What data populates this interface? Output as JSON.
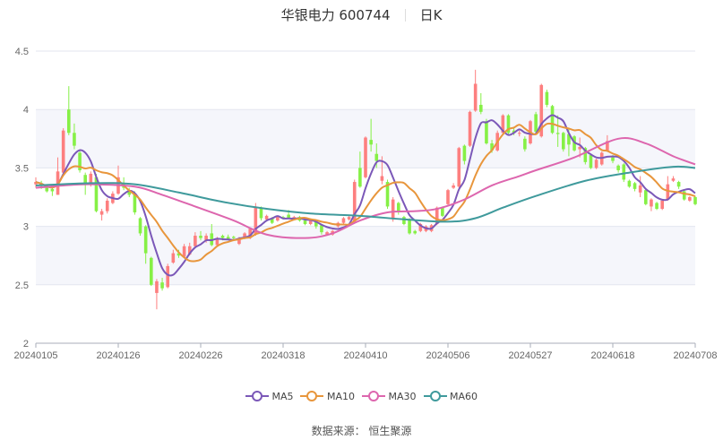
{
  "header": {
    "stock_name_code": "华银电力 600744",
    "period": "日K"
  },
  "source_text": "数据来源： 恒生聚源",
  "colors": {
    "up": "#fd7f7f",
    "down": "#86f046",
    "MA5": "#7b58b8",
    "MA10": "#e8963c",
    "MA30": "#dd66ae",
    "MA60": "#3f9a9c",
    "band": "#f5f6fb",
    "grid": "#e3e6ef"
  },
  "chart_data": {
    "type": "candlestick",
    "ylim": [
      2,
      4.5
    ],
    "y_ticks": [
      "2",
      "2.5",
      "3",
      "3.5",
      "4",
      "4.5"
    ],
    "x_tick_labels": [
      {
        "index": 0,
        "label": "20240105"
      },
      {
        "index": 15,
        "label": "20240126"
      },
      {
        "index": 30,
        "label": "20240226"
      },
      {
        "index": 45,
        "label": "20240318"
      },
      {
        "index": 60,
        "label": "20240410"
      },
      {
        "index": 75,
        "label": "20240506"
      },
      {
        "index": 90,
        "label": "20240527"
      },
      {
        "index": 105,
        "label": "20240618"
      },
      {
        "index": 120,
        "label": "20240708"
      }
    ],
    "candle_format": [
      "open",
      "close",
      "low",
      "high"
    ],
    "candles": [
      [
        3.36,
        3.38,
        3.33,
        3.42
      ],
      [
        3.37,
        3.35,
        3.32,
        3.39
      ],
      [
        3.33,
        3.3,
        3.29,
        3.35
      ],
      [
        3.32,
        3.3,
        3.26,
        3.34
      ],
      [
        3.27,
        3.47,
        3.27,
        3.59
      ],
      [
        3.46,
        3.82,
        3.45,
        3.84
      ],
      [
        4.0,
        3.8,
        3.78,
        4.2
      ],
      [
        3.8,
        3.69,
        3.66,
        3.88
      ],
      [
        3.63,
        3.48,
        3.46,
        3.66
      ],
      [
        3.44,
        3.36,
        3.27,
        3.46
      ],
      [
        3.37,
        3.45,
        3.34,
        3.47
      ],
      [
        3.42,
        3.13,
        3.12,
        3.45
      ],
      [
        3.1,
        3.13,
        3.05,
        3.15
      ],
      [
        3.13,
        3.22,
        3.11,
        3.24
      ],
      [
        3.2,
        3.28,
        3.19,
        3.3
      ],
      [
        3.28,
        3.42,
        3.27,
        3.52
      ],
      [
        3.36,
        3.33,
        3.31,
        3.42
      ],
      [
        3.31,
        3.27,
        3.25,
        3.33
      ],
      [
        3.28,
        3.12,
        3.1,
        3.3
      ],
      [
        3.07,
        2.94,
        2.92,
        3.08
      ],
      [
        3.0,
        2.77,
        2.68,
        3.01
      ],
      [
        2.73,
        2.5,
        2.49,
        2.74
      ],
      [
        2.43,
        2.53,
        2.29,
        2.55
      ],
      [
        2.52,
        2.47,
        2.45,
        2.56
      ],
      [
        2.48,
        2.66,
        2.47,
        2.68
      ],
      [
        2.69,
        2.77,
        2.68,
        2.8
      ],
      [
        2.77,
        2.75,
        2.73,
        2.8
      ],
      [
        2.74,
        2.83,
        2.73,
        2.85
      ],
      [
        2.76,
        2.83,
        2.75,
        2.86
      ],
      [
        2.83,
        2.92,
        2.82,
        2.95
      ],
      [
        2.92,
        2.9,
        2.88,
        2.96
      ],
      [
        2.88,
        2.92,
        2.86,
        2.94
      ],
      [
        2.94,
        2.84,
        2.83,
        3.02
      ],
      [
        2.84,
        2.89,
        2.83,
        2.91
      ],
      [
        2.92,
        2.9,
        2.88,
        2.93
      ],
      [
        2.91,
        2.89,
        2.88,
        2.93
      ],
      [
        2.91,
        2.9,
        2.88,
        2.92
      ],
      [
        2.85,
        2.9,
        2.84,
        2.91
      ],
      [
        2.9,
        2.94,
        2.89,
        2.95
      ],
      [
        2.9,
        2.98,
        2.89,
        2.99
      ],
      [
        2.93,
        3.17,
        2.92,
        3.2
      ],
      [
        3.16,
        3.07,
        3.05,
        3.17
      ],
      [
        3.06,
        3.09,
        3.05,
        3.1
      ],
      [
        3.07,
        3.03,
        3.02,
        3.08
      ],
      [
        3.05,
        3.08,
        3.04,
        3.09
      ],
      [
        3.08,
        3.07,
        3.06,
        3.09
      ],
      [
        3.1,
        3.07,
        3.06,
        3.14
      ],
      [
        3.07,
        3.08,
        3.06,
        3.09
      ],
      [
        3.08,
        3.05,
        3.04,
        3.09
      ],
      [
        3.05,
        3.02,
        3.01,
        3.06
      ],
      [
        3.02,
        3.05,
        3.01,
        3.06
      ],
      [
        3.04,
        3.0,
        2.98,
        3.05
      ],
      [
        3.01,
        2.95,
        2.93,
        3.02
      ],
      [
        2.93,
        2.95,
        2.92,
        2.96
      ],
      [
        2.93,
        2.96,
        2.92,
        2.97
      ],
      [
        3.0,
        3.03,
        2.99,
        3.04
      ],
      [
        3.03,
        3.07,
        3.02,
        3.08
      ],
      [
        3.06,
        3.08,
        3.05,
        3.09
      ],
      [
        3.04,
        3.38,
        3.03,
        3.4
      ],
      [
        3.5,
        3.34,
        3.33,
        3.64
      ],
      [
        3.42,
        3.76,
        3.41,
        3.77
      ],
      [
        3.74,
        3.7,
        3.64,
        3.92
      ],
      [
        3.62,
        3.56,
        3.5,
        3.71
      ],
      [
        3.39,
        3.43,
        3.36,
        3.6
      ],
      [
        3.38,
        3.17,
        3.15,
        3.4
      ],
      [
        3.06,
        3.23,
        3.04,
        3.25
      ],
      [
        3.2,
        3.12,
        3.1,
        3.21
      ],
      [
        3.08,
        3.02,
        3.01,
        3.09
      ],
      [
        3.06,
        2.94,
        2.93,
        3.07
      ],
      [
        2.96,
        2.94,
        2.93,
        2.97
      ],
      [
        2.96,
        3.02,
        2.95,
        3.03
      ],
      [
        2.96,
        3.0,
        2.95,
        3.01
      ],
      [
        2.96,
        3.01,
        2.95,
        3.02
      ],
      [
        3.02,
        3.16,
        3.01,
        3.17
      ],
      [
        3.16,
        3.09,
        3.08,
        3.17
      ],
      [
        3.19,
        3.31,
        3.18,
        3.32
      ],
      [
        3.33,
        3.35,
        3.32,
        3.37
      ],
      [
        3.34,
        3.67,
        3.33,
        3.68
      ],
      [
        3.69,
        3.56,
        3.53,
        3.7
      ],
      [
        3.69,
        3.98,
        3.68,
        3.99
      ],
      [
        3.99,
        4.22,
        3.98,
        4.34
      ],
      [
        4.04,
        3.98,
        3.96,
        4.14
      ],
      [
        3.9,
        3.71,
        3.7,
        3.92
      ],
      [
        3.71,
        3.65,
        3.63,
        3.74
      ],
      [
        3.65,
        3.8,
        3.64,
        3.82
      ],
      [
        3.8,
        3.95,
        3.79,
        3.96
      ],
      [
        3.95,
        3.8,
        3.78,
        3.96
      ],
      [
        3.82,
        3.8,
        3.78,
        3.84
      ],
      [
        3.8,
        3.8,
        3.77,
        3.82
      ],
      [
        3.75,
        3.66,
        3.64,
        3.77
      ],
      [
        3.71,
        3.9,
        3.7,
        3.91
      ],
      [
        3.96,
        3.81,
        3.79,
        3.98
      ],
      [
        3.77,
        4.21,
        3.76,
        4.22
      ],
      [
        4.15,
        4.04,
        4.02,
        4.17
      ],
      [
        4.03,
        3.8,
        3.79,
        4.04
      ],
      [
        3.8,
        3.79,
        3.68,
        3.95
      ],
      [
        3.8,
        3.66,
        3.64,
        3.81
      ],
      [
        3.79,
        3.7,
        3.6,
        3.84
      ],
      [
        3.77,
        3.65,
        3.64,
        3.78
      ],
      [
        3.66,
        3.68,
        3.59,
        3.76
      ],
      [
        3.67,
        3.55,
        3.53,
        3.68
      ],
      [
        3.61,
        3.5,
        3.49,
        3.62
      ],
      [
        3.5,
        3.57,
        3.49,
        3.58
      ],
      [
        3.53,
        3.63,
        3.52,
        3.64
      ],
      [
        3.65,
        3.73,
        3.64,
        3.78
      ],
      [
        3.59,
        3.56,
        3.54,
        3.61
      ],
      [
        3.52,
        3.48,
        3.46,
        3.53
      ],
      [
        3.53,
        3.4,
        3.38,
        3.54
      ],
      [
        3.39,
        3.34,
        3.33,
        3.4
      ],
      [
        3.37,
        3.32,
        3.3,
        3.38
      ],
      [
        3.29,
        3.35,
        3.25,
        3.43
      ],
      [
        3.31,
        3.19,
        3.18,
        3.32
      ],
      [
        3.17,
        3.23,
        3.13,
        3.24
      ],
      [
        3.2,
        3.15,
        3.14,
        3.21
      ],
      [
        3.15,
        3.22,
        3.14,
        3.23
      ],
      [
        3.23,
        3.36,
        3.22,
        3.43
      ],
      [
        3.39,
        3.41,
        3.38,
        3.43
      ],
      [
        3.38,
        3.34,
        3.32,
        3.39
      ],
      [
        3.3,
        3.23,
        3.22,
        3.31
      ],
      [
        3.22,
        3.25,
        3.21,
        3.26
      ],
      [
        3.25,
        3.19,
        3.18,
        3.26
      ]
    ],
    "moving_averages": [
      {
        "name": "MA5",
        "period": 5
      },
      {
        "name": "MA10",
        "period": 10
      },
      {
        "name": "MA30",
        "points": [
          [
            0,
            3.33
          ],
          [
            5,
            3.35
          ],
          [
            10,
            3.36
          ],
          [
            18,
            3.34
          ],
          [
            23,
            3.27
          ],
          [
            29,
            3.17
          ],
          [
            36,
            3.05
          ],
          [
            42,
            2.93
          ],
          [
            49,
            2.9
          ],
          [
            54,
            2.94
          ],
          [
            59,
            3.05
          ],
          [
            64,
            3.12
          ],
          [
            69,
            3.13
          ],
          [
            73,
            3.15
          ],
          [
            78,
            3.23
          ],
          [
            83,
            3.35
          ],
          [
            88,
            3.43
          ],
          [
            91,
            3.48
          ],
          [
            98,
            3.59
          ],
          [
            106,
            3.75
          ],
          [
            111,
            3.71
          ],
          [
            116,
            3.6
          ],
          [
            120,
            3.53
          ]
        ]
      },
      {
        "name": "MA60",
        "points": [
          [
            0,
            3.35
          ],
          [
            10,
            3.37
          ],
          [
            18,
            3.36
          ],
          [
            26,
            3.29
          ],
          [
            34,
            3.21
          ],
          [
            42,
            3.15
          ],
          [
            50,
            3.11
          ],
          [
            59,
            3.09
          ],
          [
            67,
            3.06
          ],
          [
            75,
            3.04
          ],
          [
            80,
            3.07
          ],
          [
            85,
            3.16
          ],
          [
            91,
            3.26
          ],
          [
            100,
            3.39
          ],
          [
            108,
            3.46
          ],
          [
            116,
            3.51
          ],
          [
            120,
            3.5
          ]
        ]
      }
    ],
    "legend": [
      "MA5",
      "MA10",
      "MA30",
      "MA60"
    ],
    "legend_placement": "bottom",
    "grid": true
  }
}
